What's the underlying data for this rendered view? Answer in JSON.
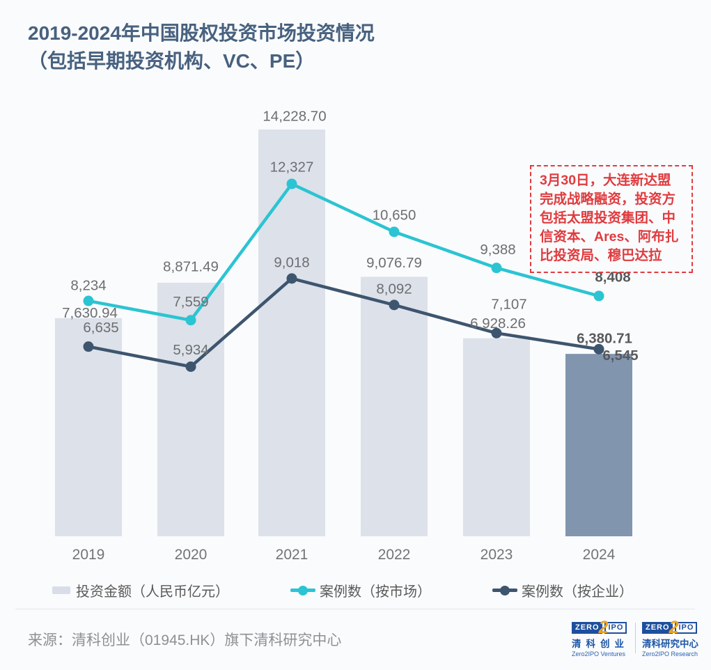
{
  "title_lines": [
    "2019-2024年中国股权投资市场投资情况",
    "（包括早期投资机构、VC、PE）"
  ],
  "annotation": {
    "text": "3月30日，大连新达盟完成战略融资，投资方包括太盟投资集团、中信资本、Ares、阿布扎比投资局、穆巴达拉",
    "color": "#e03b3e"
  },
  "chart_data": {
    "type": "bar",
    "subtype": "combo-bar-line",
    "categories": [
      "2019",
      "2020",
      "2021",
      "2022",
      "2023",
      "2024"
    ],
    "series": [
      {
        "name": "投资金额（人民币亿元）",
        "type": "bar",
        "values": [
          7630.94,
          8871.49,
          14228.7,
          9076.79,
          6928.26,
          6380.71
        ],
        "decimals": 2
      },
      {
        "name": "案例数（按市场）",
        "type": "line",
        "values": [
          8234,
          7559,
          12327,
          10650,
          9388,
          8408
        ],
        "decimals": 0
      },
      {
        "name": "案例数（按企业）",
        "type": "line",
        "values": [
          6635,
          5934,
          9018,
          8092,
          7107,
          6545
        ],
        "decimals": 0
      }
    ],
    "highlight_category": "2024",
    "title": "2019-2024年中国股权投资市场投资情况（包括早期投资机构、VC、PE）",
    "xlabel": "",
    "ylabel": "",
    "ylim": [
      0,
      14228.7
    ],
    "grid": false,
    "legend_position": "bottom",
    "colors": {
      "bar": "#dce1ea",
      "bar_highlight": "#8195af",
      "line_market": "#2bc4d2",
      "line_enterprise": "#3e556e",
      "label": "#6d6e70",
      "label_bold": "#58595b",
      "axis_label": "#737476",
      "title": "#47617f",
      "annotation_red": "#e03b3e"
    }
  },
  "legend": {
    "items": [
      {
        "label": "投资金额（人民币亿元）",
        "marker": "bar-swatch"
      },
      {
        "label": "案例数（按市场）",
        "marker": "teal-line-dot"
      },
      {
        "label": "案例数（按企业）",
        "marker": "dark-line-dot"
      }
    ]
  },
  "footer": {
    "source": "来源：清科创业（01945.HK）旗下清科研究中心"
  },
  "logos": [
    {
      "zero": "ZERO",
      "two": "2",
      "ipo": "IPO",
      "cn": "清科创业",
      "en": "Zero2IPO Ventures",
      "spread": true
    },
    {
      "zero": "ZERO",
      "two": "2",
      "ipo": "IPO",
      "cn": "清科研究中心",
      "en": "Zero2IPO Research",
      "spread": false
    }
  ]
}
